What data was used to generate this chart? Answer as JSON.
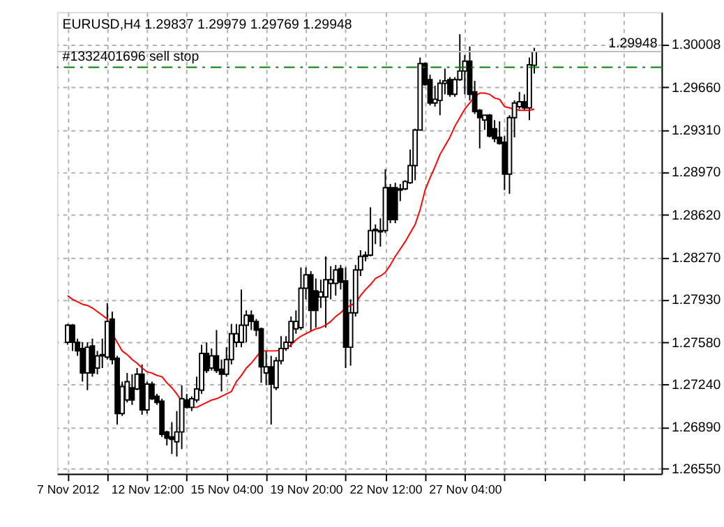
{
  "chart_data": {
    "type": "candlestick",
    "title": "EURUSD,H4  1.29837 1.29979 1.29769 1.29948",
    "categories": [
      "7 Nov 2012",
      null,
      null,
      null,
      null,
      null,
      null,
      null,
      null,
      null,
      null,
      null,
      null,
      null,
      null,
      null,
      "12 Nov 12:00",
      null,
      null,
      null,
      null,
      null,
      null,
      null,
      null,
      null,
      null,
      null,
      null,
      null,
      null,
      null,
      "15 Nov 04:00",
      null,
      null,
      null,
      null,
      null,
      null,
      null,
      null,
      null,
      null,
      null,
      null,
      null,
      null,
      null,
      "19 Nov 20:00",
      null,
      null,
      null,
      null,
      null,
      null,
      null,
      null,
      null,
      null,
      null,
      null,
      null,
      null,
      null,
      "22 Nov 12:00",
      null,
      null,
      null,
      null,
      null,
      null,
      null,
      null,
      null,
      null,
      null,
      null,
      null,
      null,
      null,
      "27 Nov 04:00",
      null,
      null,
      null,
      null,
      null,
      null,
      null,
      null,
      null,
      null,
      null,
      null,
      null,
      null,
      null,
      null,
      null,
      null,
      null,
      null,
      null,
      null,
      null,
      null,
      null,
      null,
      null,
      null,
      null,
      null,
      null,
      null,
      null,
      null,
      null,
      null,
      null,
      null
    ],
    "ohlc": [
      [
        1.2758,
        1.2773,
        1.2756,
        1.2772
      ],
      [
        1.2772,
        1.2773,
        1.2751,
        1.2758
      ],
      [
        1.2758,
        1.2761,
        1.2747,
        1.2751
      ],
      [
        1.2753,
        1.2758,
        1.2726,
        1.2733
      ],
      [
        1.2733,
        1.2758,
        1.2719,
        1.2754
      ],
      [
        1.2755,
        1.2761,
        1.273,
        1.2733
      ],
      [
        1.2737,
        1.2751,
        1.2732,
        1.2747
      ],
      [
        1.2747,
        1.2761,
        1.2737,
        1.2748
      ],
      [
        1.2746,
        1.279,
        1.2744,
        1.2775
      ],
      [
        1.2777,
        1.2783,
        1.274,
        1.2744
      ],
      [
        1.2745,
        1.2747,
        1.2691,
        1.27
      ],
      [
        1.27,
        1.2726,
        1.2698,
        1.2722
      ],
      [
        1.2711,
        1.2733,
        1.2709,
        1.2726
      ],
      [
        1.2721,
        1.2732,
        1.2707,
        1.2711
      ],
      [
        1.272,
        1.2737,
        1.2719,
        1.2732
      ],
      [
        1.2732,
        1.274,
        1.2699,
        1.2703
      ],
      [
        1.2703,
        1.2726,
        1.27,
        1.2724
      ],
      [
        1.2724,
        1.2726,
        1.2711,
        1.2712
      ],
      [
        1.2714,
        1.2716,
        1.2707,
        1.2709
      ],
      [
        1.271,
        1.2712,
        1.2681,
        1.2683
      ],
      [
        1.2685,
        1.2686,
        1.2674,
        1.268
      ],
      [
        1.2681,
        1.2693,
        1.2667,
        1.2679
      ],
      [
        1.2677,
        1.2702,
        1.2665,
        1.2685
      ],
      [
        1.2685,
        1.2723,
        1.2671,
        1.2712
      ],
      [
        1.2711,
        1.2716,
        1.2704,
        1.2705
      ],
      [
        1.2705,
        1.2714,
        1.2702,
        1.2712
      ],
      [
        1.2711,
        1.273,
        1.2709,
        1.272
      ],
      [
        1.2719,
        1.2756,
        1.2716,
        1.2749
      ],
      [
        1.2749,
        1.2758,
        1.2733,
        1.2735
      ],
      [
        1.2737,
        1.2753,
        1.2735,
        1.2747
      ],
      [
        1.2747,
        1.2768,
        1.2733,
        1.2735
      ],
      [
        1.2736,
        1.2744,
        1.2718,
        1.2732
      ],
      [
        1.2732,
        1.2754,
        1.273,
        1.2744
      ],
      [
        1.2744,
        1.2773,
        1.274,
        1.2765
      ],
      [
        1.2758,
        1.2773,
        1.2754,
        1.2765
      ],
      [
        1.2758,
        1.2801,
        1.2754,
        1.2772
      ],
      [
        1.2772,
        1.2784,
        1.2758,
        1.278
      ],
      [
        1.278,
        1.2784,
        1.2768,
        1.2775
      ],
      [
        1.2775,
        1.2777,
        1.2763,
        1.2768
      ],
      [
        1.2769,
        1.277,
        1.2725,
        1.2738
      ],
      [
        1.2733,
        1.2751,
        1.2723,
        1.2738
      ],
      [
        1.2738,
        1.2747,
        1.2691,
        1.2724
      ],
      [
        1.2721,
        1.2746,
        1.2719,
        1.2743
      ],
      [
        1.2743,
        1.2763,
        1.274,
        1.2753
      ],
      [
        1.2753,
        1.2763,
        1.2751,
        1.2758
      ],
      [
        1.2758,
        1.2779,
        1.2754,
        1.2775
      ],
      [
        1.2769,
        1.2784,
        1.2765,
        1.2775
      ],
      [
        1.277,
        1.2819,
        1.2768,
        1.2802
      ],
      [
        1.2802,
        1.2819,
        1.2793,
        1.2813
      ],
      [
        1.2813,
        1.2816,
        1.2767,
        1.2784
      ],
      [
        1.28,
        1.281,
        1.277,
        1.2784
      ],
      [
        1.2795,
        1.2809,
        1.2786,
        1.2799
      ],
      [
        1.2795,
        1.2828,
        1.277,
        1.2809
      ],
      [
        1.2806,
        1.282,
        1.2793,
        1.2809
      ],
      [
        1.2806,
        1.2821,
        1.2796,
        1.2817
      ],
      [
        1.2818,
        1.2821,
        1.2801,
        1.2807
      ],
      [
        1.2808,
        1.2819,
        1.2737,
        1.2754
      ],
      [
        1.2754,
        1.2793,
        1.2739,
        1.2782
      ],
      [
        1.2782,
        1.2821,
        1.2779,
        1.2817
      ],
      [
        1.2817,
        1.2833,
        1.2812,
        1.2828
      ],
      [
        1.2828,
        1.2832,
        1.2824,
        1.2829
      ],
      [
        1.2829,
        1.2868,
        1.2828,
        1.2849
      ],
      [
        1.2849,
        1.2854,
        1.2838,
        1.285
      ],
      [
        1.2848,
        1.2859,
        1.2836,
        1.2849
      ],
      [
        1.2849,
        1.2899,
        1.2847,
        1.2884
      ],
      [
        1.2884,
        1.2887,
        1.2855,
        1.2858
      ],
      [
        1.2884,
        1.2888,
        1.2855,
        1.2858
      ],
      [
        1.2882,
        1.2887,
        1.2873,
        1.2883
      ],
      [
        1.2883,
        1.289,
        1.2882,
        1.2889
      ],
      [
        1.2888,
        1.2915,
        1.2887,
        1.2902
      ],
      [
        1.2902,
        1.2932,
        1.289,
        1.2931
      ],
      [
        1.2931,
        1.299,
        1.2931,
        1.2985
      ],
      [
        1.2985,
        1.2986,
        1.2967,
        1.2968
      ],
      [
        1.2972,
        1.2976,
        1.2951,
        1.2953
      ],
      [
        1.2953,
        1.2967,
        1.295,
        1.2956
      ],
      [
        1.2955,
        1.2972,
        1.2943,
        1.2969
      ],
      [
        1.2969,
        1.2981,
        1.296,
        1.2971
      ],
      [
        1.2972,
        1.2974,
        1.2958,
        1.296
      ],
      [
        1.296,
        1.2974,
        1.2958,
        1.2972
      ],
      [
        1.2972,
        1.3009,
        1.2971,
        1.2979
      ],
      [
        1.2979,
        1.2992,
        1.296,
        1.2987
      ],
      [
        1.2987,
        1.2999,
        1.2955,
        1.296
      ],
      [
        1.2962,
        1.2971,
        1.2944,
        1.2946
      ],
      [
        1.2947,
        1.2948,
        1.2916,
        1.2941
      ],
      [
        1.2939,
        1.2943,
        1.2931,
        1.2943
      ],
      [
        1.2943,
        1.2944,
        1.2925,
        1.2926
      ],
      [
        1.2932,
        1.2939,
        1.2921,
        1.2924
      ],
      [
        1.2925,
        1.2938,
        1.2919,
        1.292
      ],
      [
        1.2921,
        1.2926,
        1.2882,
        1.2895
      ],
      [
        1.2895,
        1.2943,
        1.2879,
        1.2941
      ],
      [
        1.2941,
        1.2955,
        1.2925,
        1.2953
      ],
      [
        1.295,
        1.2962,
        1.2948,
        1.2954
      ],
      [
        1.2954,
        1.296,
        1.2947,
        1.2949
      ],
      [
        1.2949,
        1.299,
        1.2939,
        1.2984
      ],
      [
        1.29837,
        1.29979,
        1.29769,
        1.29948
      ],
      null,
      null,
      null,
      null,
      null,
      null,
      null,
      null,
      null,
      null,
      null,
      null,
      null,
      null,
      null,
      null,
      null,
      null,
      null,
      null,
      null,
      null,
      null,
      null
    ],
    "series": [
      {
        "type": "line",
        "color": "#ff0000",
        "values": [
          1.2796,
          1.2793,
          1.2791,
          1.2789,
          1.2788,
          1.2786,
          1.2783,
          1.278,
          1.2777,
          1.2765,
          1.2758,
          1.2751,
          1.2748,
          1.2744,
          1.2741,
          1.2737,
          1.2734,
          1.2733,
          1.2731,
          1.273,
          1.2725,
          1.2721,
          1.2716,
          1.271,
          1.2705,
          1.2705,
          1.2705,
          1.2707,
          1.2709,
          1.2711,
          1.2712,
          1.2714,
          1.2716,
          1.2718,
          1.2726,
          1.2731,
          1.2737,
          1.2741,
          1.2746,
          1.2751,
          1.2751,
          1.2751,
          1.2751,
          1.2752,
          1.2753,
          1.2756,
          1.276,
          1.2763,
          1.2765,
          1.2767,
          1.2769,
          1.277,
          1.2772,
          1.2775,
          1.2779,
          1.2782,
          1.2786,
          1.2788,
          1.279,
          1.2796,
          1.2801,
          1.2805,
          1.281,
          1.2812,
          1.2815,
          1.2821,
          1.2828,
          1.2834,
          1.284,
          1.2847,
          1.2854,
          1.2866,
          1.2882,
          1.2892,
          1.2901,
          1.2911,
          1.2918,
          1.2925,
          1.2934,
          1.2941,
          1.2948,
          1.2953,
          1.2958,
          1.2961,
          1.2961,
          1.296,
          1.2957,
          1.2956,
          1.295,
          1.2949,
          1.2948,
          1.2947,
          1.2947,
          1.2947,
          1.2948,
          null,
          null,
          null,
          null,
          null,
          null,
          null,
          null,
          null,
          null,
          null,
          null,
          null,
          null,
          null,
          null,
          null,
          null,
          null,
          null,
          null,
          null,
          null,
          null
        ]
      }
    ],
    "ylim": [
      1.2651,
      1.3027
    ],
    "yticks": [
      {
        "value": 1.2655,
        "label": "1.26550"
      },
      {
        "value": 1.2689,
        "label": "1.26890"
      },
      {
        "value": 1.2724,
        "label": "1.27240"
      },
      {
        "value": 1.2758,
        "label": "1.27580"
      },
      {
        "value": 1.2793,
        "label": "1.27930"
      },
      {
        "value": 1.2827,
        "label": "1.28270"
      },
      {
        "value": 1.2862,
        "label": "1.28620"
      },
      {
        "value": 1.2897,
        "label": "1.28970"
      },
      {
        "value": 1.2931,
        "label": "1.29310"
      },
      {
        "value": 1.2966,
        "label": "1.29660"
      },
      1.30008
    ],
    "ref_lines": [
      {
        "axis": "y",
        "value": 1.29948,
        "label": "1.29948",
        "color": "#c0c0c0",
        "line_style": "solid"
      },
      {
        "axis": "y",
        "value": 1.2982,
        "label": "#1332401696 sell stop",
        "color": "#008000",
        "line_style": "dashed"
      }
    ],
    "grid": true,
    "marker": "none"
  }
}
